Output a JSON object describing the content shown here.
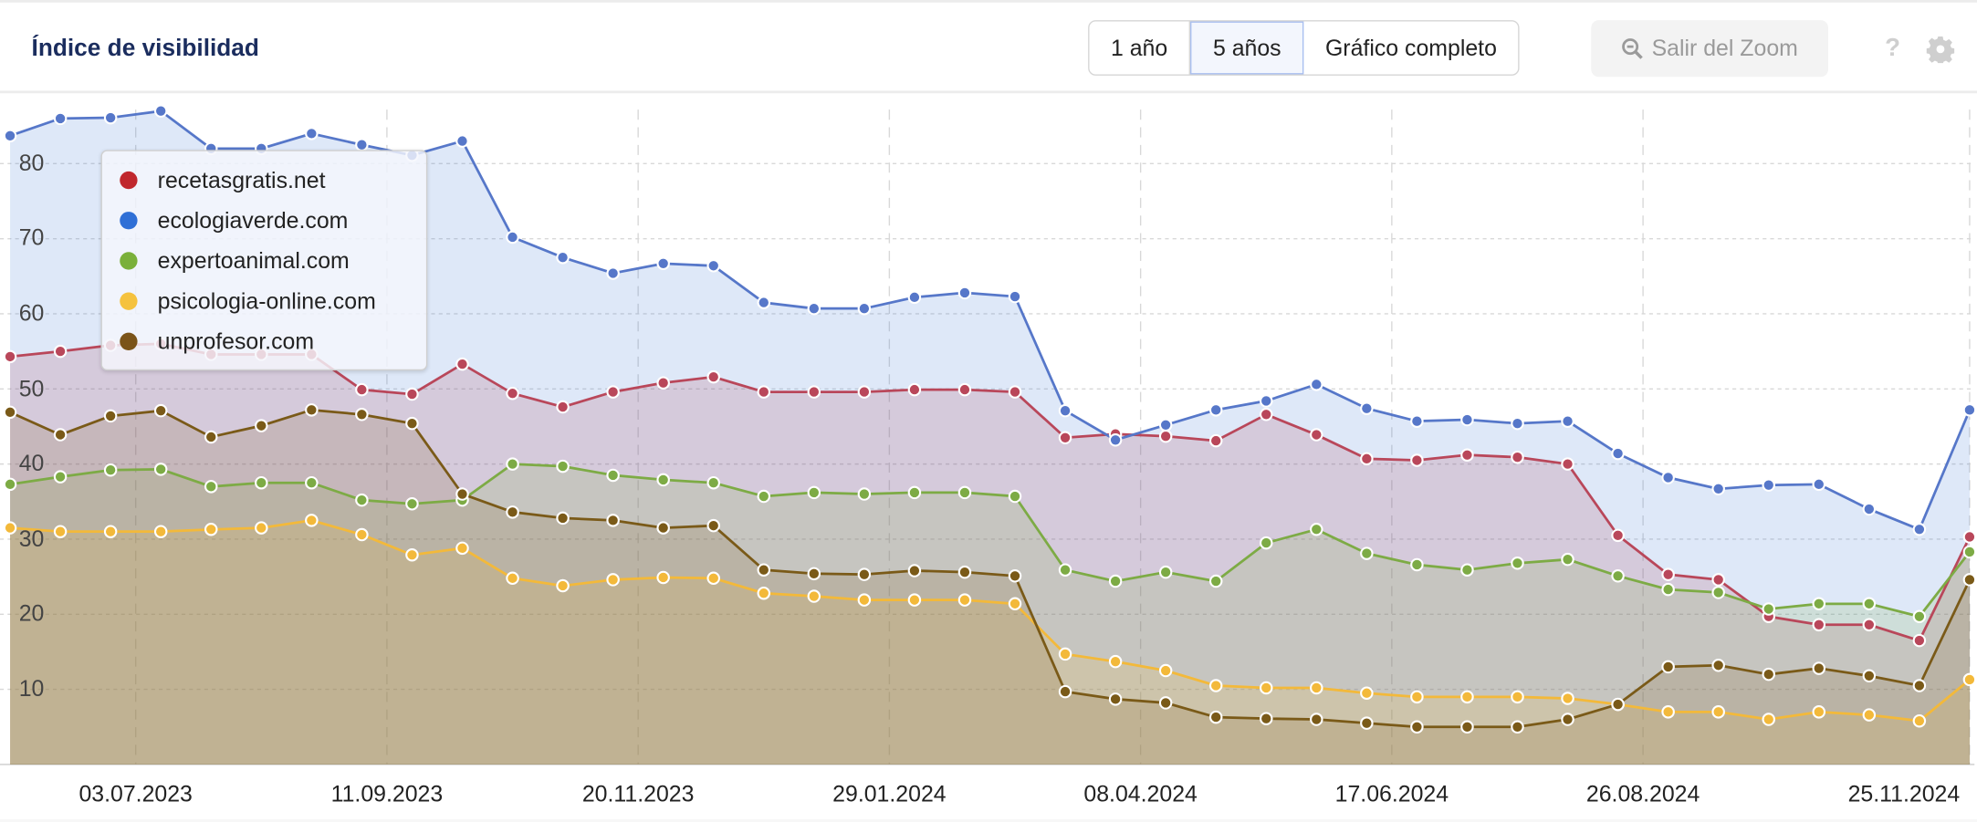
{
  "header": {
    "title": "Índice de visibilidad",
    "range_buttons": [
      "1 año",
      "5 años",
      "Gráfico completo"
    ],
    "active_range": "5 años",
    "reset_zoom_label": "Salir del Zoom",
    "help_label": "?"
  },
  "chart_data": {
    "type": "area",
    "title": "Índice de visibilidad",
    "xlabel": "",
    "ylabel": "",
    "ylim": [
      0,
      88
    ],
    "yticks": [
      10,
      20,
      30,
      40,
      50,
      60,
      70,
      80
    ],
    "xticks": [
      "03.07.2023",
      "11.09.2023",
      "20.11.2023",
      "29.01.2024",
      "08.04.2024",
      "17.06.2024",
      "26.08.2024",
      "25.11.2024"
    ],
    "grid": true,
    "legend_position": "top-left",
    "x": [
      "29.05.2023",
      "12.06.2023",
      "26.06.2023",
      "10.07.2023",
      "24.07.2023",
      "07.08.2023",
      "21.08.2023",
      "04.09.2023",
      "18.09.2023",
      "02.10.2023",
      "16.10.2023",
      "30.10.2023",
      "13.11.2023",
      "27.11.2023",
      "11.12.2023",
      "25.12.2023",
      "08.01.2024",
      "22.01.2024",
      "05.02.2024",
      "19.02.2024",
      "04.03.2024",
      "18.03.2024",
      "01.04.2024",
      "15.04.2024",
      "29.04.2024",
      "13.05.2024",
      "27.05.2024",
      "10.06.2024",
      "24.06.2024",
      "08.07.2024",
      "22.07.2024",
      "05.08.2024",
      "19.08.2024",
      "02.09.2024",
      "16.09.2024",
      "30.09.2024",
      "14.10.2024",
      "28.10.2024",
      "11.11.2024",
      "25.11.2024"
    ],
    "series": [
      {
        "name": "recetasgratis.net",
        "color": "#c0272d",
        "line": "#b9475a",
        "values": [
          54.3,
          55.0,
          55.8,
          56.0,
          54.6,
          54.6,
          54.6,
          49.9,
          49.3,
          53.3,
          49.4,
          47.6,
          49.6,
          50.8,
          51.6,
          49.6,
          49.6,
          49.6,
          49.9,
          49.9,
          49.6,
          43.5,
          44.0,
          43.7,
          43.1,
          46.6,
          43.9,
          40.7,
          40.5,
          41.2,
          40.9,
          40.0,
          30.5,
          25.3,
          24.6,
          19.7,
          18.6,
          18.6,
          16.5,
          30.3
        ]
      },
      {
        "name": "ecologiaverde.com",
        "color": "#2f6fd6",
        "line": "#5677c9",
        "values": [
          83.7,
          86.0,
          86.1,
          87.0,
          82.0,
          82.0,
          84.0,
          82.5,
          81.1,
          83.0,
          70.2,
          67.5,
          65.4,
          66.7,
          66.4,
          61.5,
          60.7,
          60.7,
          62.2,
          62.8,
          62.3,
          47.1,
          43.2,
          45.2,
          47.2,
          48.4,
          50.6,
          47.4,
          45.7,
          45.9,
          45.4,
          45.7,
          41.4,
          38.2,
          36.7,
          37.2,
          37.3,
          34.0,
          31.3,
          47.2
        ]
      },
      {
        "name": "expertoanimal.com",
        "color": "#7ab03a",
        "line": "#7dab45",
        "values": [
          37.3,
          38.3,
          39.2,
          39.3,
          37.0,
          37.5,
          37.5,
          35.2,
          34.7,
          35.2,
          40.0,
          39.7,
          38.5,
          37.9,
          37.5,
          35.7,
          36.2,
          36.0,
          36.2,
          36.2,
          35.7,
          25.9,
          24.4,
          25.6,
          24.4,
          29.5,
          31.3,
          28.1,
          26.6,
          25.9,
          26.8,
          27.3,
          25.1,
          23.3,
          22.9,
          20.7,
          21.4,
          21.4,
          19.7,
          28.3
        ]
      },
      {
        "name": "psicologia-online.com",
        "color": "#f5c23e",
        "line": "#f3b93a",
        "values": [
          31.5,
          31.0,
          31.0,
          31.0,
          31.3,
          31.5,
          32.5,
          30.6,
          27.9,
          28.8,
          24.8,
          23.8,
          24.6,
          24.9,
          24.8,
          22.8,
          22.4,
          21.9,
          21.9,
          21.9,
          21.4,
          14.7,
          13.7,
          12.5,
          10.5,
          10.2,
          10.2,
          9.5,
          9.0,
          9.0,
          9.0,
          8.8,
          8.0,
          7.0,
          7.0,
          6.0,
          7.0,
          6.6,
          5.8,
          11.3
        ]
      },
      {
        "name": "unprofesor.com",
        "color": "#7b5419",
        "line": "#7a5a18",
        "values": [
          46.9,
          43.9,
          46.4,
          47.1,
          43.6,
          45.1,
          47.2,
          46.6,
          45.4,
          36.0,
          33.6,
          32.8,
          32.5,
          31.5,
          31.8,
          25.9,
          25.4,
          25.3,
          25.8,
          25.6,
          25.1,
          9.7,
          8.7,
          8.2,
          6.3,
          6.1,
          6.0,
          5.5,
          5.0,
          5.0,
          5.0,
          6.0,
          8.0,
          13.0,
          13.2,
          12.0,
          12.8,
          11.8,
          10.5,
          24.6
        ]
      }
    ]
  }
}
